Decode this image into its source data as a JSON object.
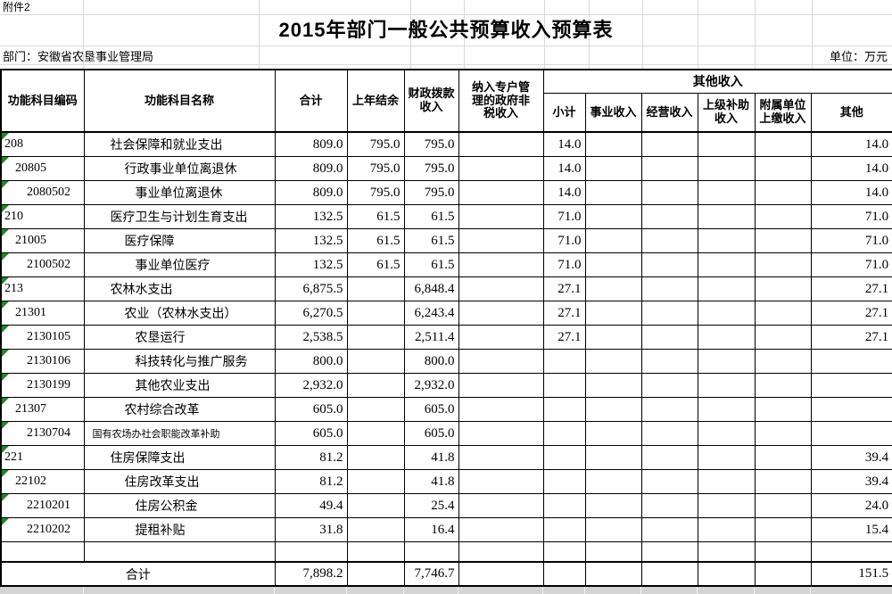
{
  "page": {
    "attachment_label": "附件2",
    "title": "2015年部门一般公共预算收入预算表",
    "department_label": "部门：安徽省农垦事业管理局",
    "unit_label": "单位：万元"
  },
  "table": {
    "headers": {
      "code": "功能科目编码",
      "name": "功能科目名称",
      "total": "合计",
      "prev": "上年结余",
      "fiscal": "财政拨款\n收入",
      "nontax": "纳入专户管\n理的政府非\n税收入",
      "other_group": "其他收入",
      "subtotal": "小计",
      "business": "事业收入",
      "operating": "经营收入",
      "subsidy": "上级补助\n收入",
      "affiliated": "附属单位\n上缴收入",
      "other": "其他"
    },
    "rows": [
      {
        "code": "208",
        "level": 1,
        "name": "社会保障和就业支出",
        "total": "809.0",
        "prev": "795.0",
        "fiscal": "795.0",
        "nontax": "",
        "subtotal": "14.0",
        "business": "",
        "operating": "",
        "subsidy": "",
        "affiliated": "",
        "other": "14.0"
      },
      {
        "code": "20805",
        "level": 2,
        "name": "行政事业单位离退休",
        "total": "809.0",
        "prev": "795.0",
        "fiscal": "795.0",
        "nontax": "",
        "subtotal": "14.0",
        "business": "",
        "operating": "",
        "subsidy": "",
        "affiliated": "",
        "other": "14.0"
      },
      {
        "code": "2080502",
        "level": 3,
        "name": "事业单位离退休",
        "total": "809.0",
        "prev": "795.0",
        "fiscal": "795.0",
        "nontax": "",
        "subtotal": "14.0",
        "business": "",
        "operating": "",
        "subsidy": "",
        "affiliated": "",
        "other": "14.0"
      },
      {
        "code": "210",
        "level": 1,
        "name": "医疗卫生与计划生育支出",
        "total": "132.5",
        "prev": "61.5",
        "fiscal": "61.5",
        "nontax": "",
        "subtotal": "71.0",
        "business": "",
        "operating": "",
        "subsidy": "",
        "affiliated": "",
        "other": "71.0"
      },
      {
        "code": "21005",
        "level": 2,
        "name": "医疗保障",
        "total": "132.5",
        "prev": "61.5",
        "fiscal": "61.5",
        "nontax": "",
        "subtotal": "71.0",
        "business": "",
        "operating": "",
        "subsidy": "",
        "affiliated": "",
        "other": "71.0"
      },
      {
        "code": "2100502",
        "level": 3,
        "name": "事业单位医疗",
        "total": "132.5",
        "prev": "61.5",
        "fiscal": "61.5",
        "nontax": "",
        "subtotal": "71.0",
        "business": "",
        "operating": "",
        "subsidy": "",
        "affiliated": "",
        "other": "71.0"
      },
      {
        "code": "213",
        "level": 1,
        "name": "农林水支出",
        "total": "6,875.5",
        "prev": "",
        "fiscal": "6,848.4",
        "nontax": "",
        "subtotal": "27.1",
        "business": "",
        "operating": "",
        "subsidy": "",
        "affiliated": "",
        "other": "27.1"
      },
      {
        "code": "21301",
        "level": 2,
        "name": "农业（农林水支出）",
        "total": "6,270.5",
        "prev": "",
        "fiscal": "6,243.4",
        "nontax": "",
        "subtotal": "27.1",
        "business": "",
        "operating": "",
        "subsidy": "",
        "affiliated": "",
        "other": "27.1"
      },
      {
        "code": "2130105",
        "level": 3,
        "name": "农垦运行",
        "total": "2,538.5",
        "prev": "",
        "fiscal": "2,511.4",
        "nontax": "",
        "subtotal": "27.1",
        "business": "",
        "operating": "",
        "subsidy": "",
        "affiliated": "",
        "other": "27.1"
      },
      {
        "code": "2130106",
        "level": 3,
        "name": "科技转化与推广服务",
        "total": "800.0",
        "prev": "",
        "fiscal": "800.0",
        "nontax": "",
        "subtotal": "",
        "business": "",
        "operating": "",
        "subsidy": "",
        "affiliated": "",
        "other": ""
      },
      {
        "code": "2130199",
        "level": 3,
        "name": "其他农业支出",
        "total": "2,932.0",
        "prev": "",
        "fiscal": "2,932.0",
        "nontax": "",
        "subtotal": "",
        "business": "",
        "operating": "",
        "subsidy": "",
        "affiliated": "",
        "other": ""
      },
      {
        "code": "21307",
        "level": 2,
        "name": "农村综合改革",
        "total": "605.0",
        "prev": "",
        "fiscal": "605.0",
        "nontax": "",
        "subtotal": "",
        "business": "",
        "operating": "",
        "subsidy": "",
        "affiliated": "",
        "other": ""
      },
      {
        "code": "2130704",
        "level": 3,
        "name": "国有农场办社会职能改革补助",
        "small": true,
        "total": "605.0",
        "prev": "",
        "fiscal": "605.0",
        "nontax": "",
        "subtotal": "",
        "business": "",
        "operating": "",
        "subsidy": "",
        "affiliated": "",
        "other": ""
      },
      {
        "code": "221",
        "level": 1,
        "name": "住房保障支出",
        "total": "81.2",
        "prev": "",
        "fiscal": "41.8",
        "nontax": "",
        "subtotal": "",
        "business": "",
        "operating": "",
        "subsidy": "",
        "affiliated": "",
        "other": "39.4"
      },
      {
        "code": "22102",
        "level": 2,
        "name": "住房改革支出",
        "total": "81.2",
        "prev": "",
        "fiscal": "41.8",
        "nontax": "",
        "subtotal": "",
        "business": "",
        "operating": "",
        "subsidy": "",
        "affiliated": "",
        "other": "39.4"
      },
      {
        "code": "2210201",
        "level": 3,
        "name": "住房公积金",
        "total": "49.4",
        "prev": "",
        "fiscal": "25.4",
        "nontax": "",
        "subtotal": "",
        "business": "",
        "operating": "",
        "subsidy": "",
        "affiliated": "",
        "other": "24.0"
      },
      {
        "code": "2210202",
        "level": 3,
        "name": "提租补贴",
        "total": "31.8",
        "prev": "",
        "fiscal": "16.4",
        "nontax": "",
        "subtotal": "",
        "business": "",
        "operating": "",
        "subsidy": "",
        "affiliated": "",
        "other": "15.4"
      }
    ],
    "total_row": {
      "label": "合计",
      "total": "7,898.2",
      "prev": "",
      "fiscal": "7,746.7",
      "nontax": "",
      "subtotal": "",
      "business": "",
      "operating": "",
      "subsidy": "",
      "affiliated": "",
      "other": "151.5"
    }
  },
  "colors": {
    "border": "#000000",
    "faint_grid": "#d9d9d9",
    "error_triangle_green": "#1f8a1f",
    "bottom_strip": "#d4d4d4"
  }
}
